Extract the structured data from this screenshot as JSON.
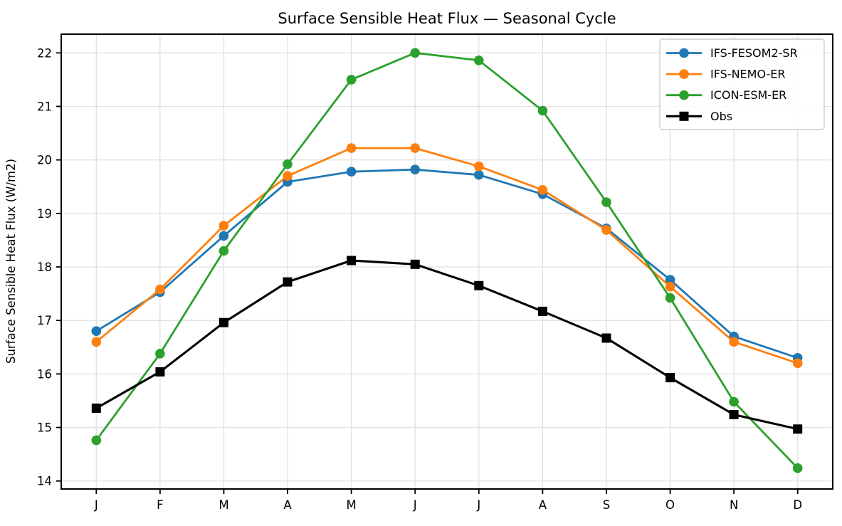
{
  "figure": {
    "title": "Surface Sensible Heat Flux — Seasonal Cycle"
  },
  "chart_data": {
    "type": "line",
    "title": "Surface Sensible Heat Flux — Seasonal Cycle",
    "xlabel": "",
    "ylabel": "Surface Sensible Heat Flux (W/m2)",
    "x_tick_labels": [
      "J",
      "F",
      "M",
      "A",
      "M",
      "J",
      "J",
      "A",
      "S",
      "O",
      "N",
      "D"
    ],
    "y_ticks": [
      14,
      15,
      16,
      17,
      18,
      19,
      20,
      21,
      22
    ],
    "xlim": [
      -0.55,
      11.55
    ],
    "ylim": [
      13.85,
      22.35
    ],
    "grid": true,
    "legend_position": "upper right",
    "colors": {
      "grid": "#e0e0e0",
      "spine": "#000000",
      "tick": "#000000",
      "legend_border": "#cccccc",
      "legend_bg": "#ffffff"
    },
    "series": [
      {
        "name": "IFS-FESOM2-SR",
        "color": "#1f77b4",
        "marker": "circle",
        "values": [
          16.8,
          17.53,
          18.58,
          19.59,
          19.78,
          19.82,
          19.72,
          19.36,
          18.72,
          17.76,
          16.7,
          16.3
        ]
      },
      {
        "name": "IFS-NEMO-ER",
        "color": "#ff7f0e",
        "marker": "circle",
        "values": [
          16.6,
          17.58,
          18.77,
          19.7,
          20.22,
          20.22,
          19.88,
          19.44,
          18.69,
          17.63,
          16.6,
          16.2
        ]
      },
      {
        "name": "ICON-ESM-ER",
        "color": "#2ca02c",
        "marker": "circle",
        "values": [
          14.76,
          16.38,
          18.3,
          19.92,
          21.5,
          22.0,
          21.86,
          20.92,
          19.21,
          17.42,
          15.48,
          14.24
        ]
      },
      {
        "name": "Obs",
        "color": "#000000",
        "marker": "square",
        "values": [
          15.36,
          16.04,
          16.96,
          17.72,
          18.12,
          18.05,
          17.65,
          17.17,
          16.67,
          15.93,
          15.24,
          14.97
        ]
      }
    ]
  }
}
